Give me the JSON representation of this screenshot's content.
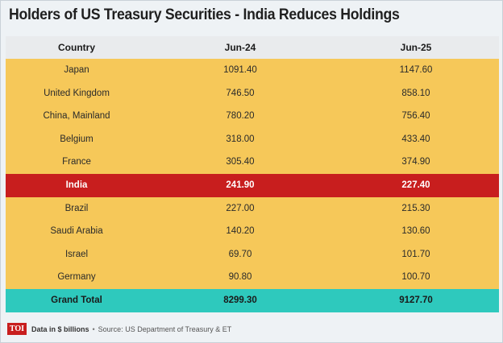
{
  "title": "Holders of US Treasury Securities - India Reduces Holdings",
  "columns": [
    "Country",
    "Jun-24",
    "Jun-25"
  ],
  "rows": [
    {
      "country": "Japan",
      "jun24": "1091.40",
      "jun25": "1147.60"
    },
    {
      "country": "United Kingdom",
      "jun24": "746.50",
      "jun25": "858.10"
    },
    {
      "country": "China, Mainland",
      "jun24": "780.20",
      "jun25": "756.40"
    },
    {
      "country": "Belgium",
      "jun24": "318.00",
      "jun25": "433.40"
    },
    {
      "country": "France",
      "jun24": "305.40",
      "jun25": "374.90"
    },
    {
      "country": "India",
      "jun24": "241.90",
      "jun25": "227.40"
    },
    {
      "country": "Brazil",
      "jun24": "227.00",
      "jun25": "215.30"
    },
    {
      "country": "Saudi Arabia",
      "jun24": "140.20",
      "jun25": "130.60"
    },
    {
      "country": "Israel",
      "jun24": "69.70",
      "jun25": "101.70"
    },
    {
      "country": "Germany",
      "jun24": "90.80",
      "jun25": "100.70"
    }
  ],
  "total": {
    "label": "Grand Total",
    "jun24": "8299.30",
    "jun25": "9127.70"
  },
  "footer": {
    "logo": "TOI",
    "unit_note": "Data in $ billions",
    "separator": "•",
    "source": "Source: US Department of Treasury & ET"
  },
  "colors": {
    "row_fill": "#f6c859",
    "highlight_fill": "#c81e1e",
    "total_fill": "#2ec9bd",
    "header_fill": "#e9ebed"
  },
  "chart_data": {
    "type": "table",
    "title": "Holders of US Treasury Securities - India Reduces Holdings",
    "columns": [
      "Country",
      "Jun-24",
      "Jun-25"
    ],
    "rows": [
      [
        "Japan",
        1091.4,
        1147.6
      ],
      [
        "United Kingdom",
        746.5,
        858.1
      ],
      [
        "China, Mainland",
        780.2,
        756.4
      ],
      [
        "Belgium",
        318.0,
        433.4
      ],
      [
        "France",
        305.4,
        374.9
      ],
      [
        "India",
        241.9,
        227.4
      ],
      [
        "Brazil",
        227.0,
        215.3
      ],
      [
        "Saudi Arabia",
        140.2,
        130.6
      ],
      [
        "Israel",
        69.7,
        101.7
      ],
      [
        "Germany",
        90.8,
        100.7
      ],
      [
        "Grand Total",
        8299.3,
        9127.7
      ]
    ],
    "highlighted_row": "India"
  }
}
